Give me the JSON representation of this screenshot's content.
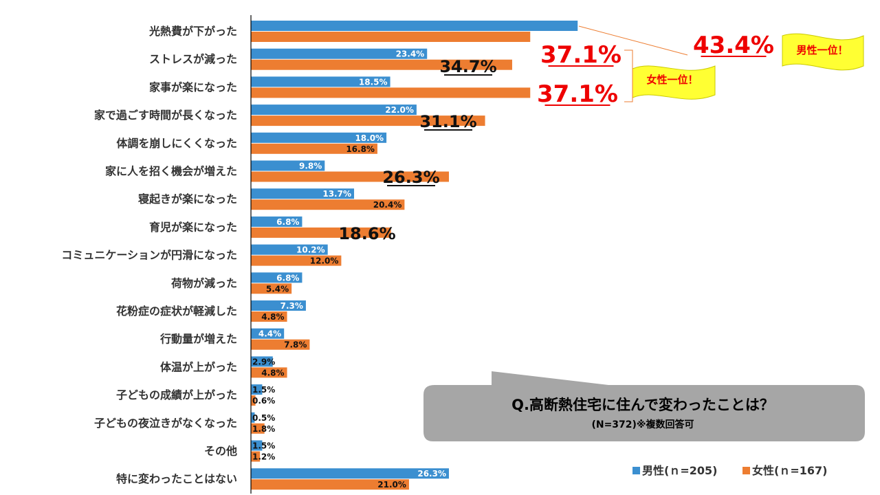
{
  "colors": {
    "male": "#3b8fd0",
    "female": "#ed7d31",
    "highlight_red": "#ee0000",
    "flag_yellow": "#ffff33",
    "callout_gray": "#a6a6a6"
  },
  "chart_data": {
    "type": "bar",
    "orientation": "horizontal",
    "categories": [
      "光熱費が下がった",
      "ストレスが減った",
      "家事が楽になった",
      "家で過ごす時間が長くなった",
      "体調を崩しにくくなった",
      "家に人を招く機会が増えた",
      "寝起きが楽になった",
      "育児が楽になった",
      "コミュニケーションが円滑になった",
      "荷物が減った",
      "花粉症の症状が軽減した",
      "行動量が増えた",
      "体温が上がった",
      "子どもの成績が上がった",
      "子どもの夜泣きがなくなった",
      "その他",
      "特に変わったことはない"
    ],
    "series": [
      {
        "name": "男性(ｎ=205)",
        "values": [
          43.4,
          23.4,
          18.5,
          22.0,
          18.0,
          9.8,
          13.7,
          6.8,
          10.2,
          6.8,
          7.3,
          4.4,
          2.9,
          1.5,
          0.5,
          1.5,
          26.3
        ],
        "labels": [
          "",
          "23.4%",
          "18.5%",
          "22.0%",
          "18.0%",
          "9.8%",
          "13.7%",
          "6.8%",
          "10.2%",
          "6.8%",
          "7.3%",
          "4.4%",
          "2.9%",
          "1.5%",
          "0.5%",
          "1.5%",
          "26.3%"
        ]
      },
      {
        "name": "女性(ｎ=167)",
        "values": [
          37.1,
          34.7,
          37.1,
          31.1,
          16.8,
          26.3,
          20.4,
          18.6,
          12.0,
          5.4,
          4.8,
          7.8,
          4.8,
          0.6,
          1.8,
          1.2,
          21.0
        ],
        "labels": [
          "",
          "",
          "",
          "",
          "16.8%",
          "",
          "20.4%",
          "",
          "12.0%",
          "5.4%",
          "4.8%",
          "7.8%",
          "4.8%",
          "0.6%",
          "1.8%",
          "1.2%",
          "21.0%"
        ]
      }
    ],
    "emphasized_labels": {
      "male": [
        {
          "index": 0,
          "text": "43.4%",
          "style": "red"
        }
      ],
      "female": [
        {
          "index": 0,
          "text": "37.1%",
          "style": "red"
        },
        {
          "index": 1,
          "text": "34.7%",
          "style": "black"
        },
        {
          "index": 2,
          "text": "37.1%",
          "style": "red"
        },
        {
          "index": 3,
          "text": "31.1%",
          "style": "black"
        },
        {
          "index": 5,
          "text": "26.3%",
          "style": "black"
        },
        {
          "index": 7,
          "text": "18.6%",
          "style": "black-plain"
        }
      ]
    },
    "xlim": [
      0,
      50
    ],
    "legend_position": "bottom-right",
    "grid": false
  },
  "annotations": {
    "male_first": "男性一位！",
    "female_first": "女性一位！"
  },
  "callout": {
    "title": "Q.高断熱住宅に住んで変わったことは？",
    "subtitle": "(N=372)※複数回答可"
  },
  "legend": {
    "male": "男性(ｎ=205)",
    "female": "女性(ｎ=167)"
  }
}
